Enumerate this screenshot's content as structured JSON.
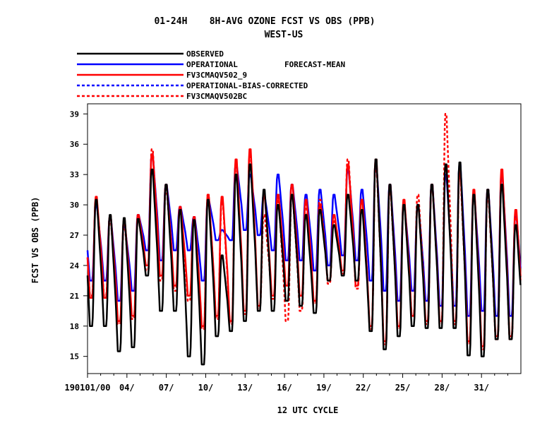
{
  "chart_data": {
    "type": "line",
    "title": "01-24H    8H-AVG OZONE FCST VS OBS (PPB)",
    "subtitle": "WEST-US",
    "legend_note": "FORECAST-MEAN",
    "xlabel": "12 UTC CYCLE",
    "ylabel": "FCST VS OBS (PPB)",
    "ylim": [
      13.3,
      40
    ],
    "xlim": [
      0,
      33
    ],
    "yticks": [
      "15",
      "18",
      "21",
      "24",
      "27",
      "30",
      "33",
      "36",
      "39"
    ],
    "xticks": [
      "190101/00",
      "04/",
      "07/",
      "10/",
      "13/",
      "16/",
      "19/",
      "22/",
      "25/",
      "28/",
      "31/"
    ],
    "legend_position": "top-left",
    "series": [
      {
        "name": "OBSERVED",
        "color": "#000000",
        "dash": "solid",
        "peaks": [
          30.5,
          29.0,
          28.7,
          28.6,
          33.5,
          32.0,
          29.5,
          28.5,
          30.5,
          25.0,
          33.0,
          34.0,
          31.5,
          30.0,
          31.0,
          29.0,
          29.5,
          28.0,
          31.0,
          29.5,
          34.5,
          32.0,
          30.0,
          30.0,
          32.0,
          34.0,
          34.2,
          31.0,
          31.5,
          32.0,
          28.0
        ],
        "troughs": [
          18.0,
          15.5,
          15.9,
          23.0,
          19.5,
          19.5,
          15.0,
          14.2,
          17.0,
          17.5,
          18.5,
          19.5,
          19.5,
          20.5,
          20.0,
          19.3,
          22.5,
          23.0,
          22.5,
          17.5,
          15.7,
          17.0,
          18.0,
          17.8,
          17.8,
          17.8,
          15.1,
          15.0,
          16.7
        ]
      },
      {
        "name": "OPERATIONAL",
        "color": "#0000ff",
        "dash": "solid",
        "peaks": [
          30.0,
          28.8,
          28.0,
          29.0,
          35.0,
          32.0,
          29.8,
          28.8,
          30.6,
          27.5,
          34.0,
          33.0,
          31.0,
          33.0,
          32.0,
          31.0,
          31.5,
          31.0,
          33.5,
          31.5,
          34.0,
          32.0,
          30.0,
          30.0,
          32.0,
          33.0,
          34.0,
          31.0,
          31.5,
          33.0,
          29.0
        ],
        "troughs": [
          22.5,
          20.5,
          21.5,
          25.5,
          24.5,
          25.5,
          25.5,
          22.5,
          26.5,
          26.5,
          27.5,
          27.0,
          25.5,
          24.5,
          24.5,
          23.5,
          24.0,
          25.0,
          24.5,
          22.5,
          21.5,
          20.5,
          21.5,
          20.5,
          20.0,
          20.0,
          19.0,
          19.5,
          19.0
        ]
      },
      {
        "name": "FV3CMAQV502_9",
        "color": "#ff0000",
        "dash": "solid",
        "peaks": [
          30.8,
          28.9,
          28.5,
          29.0,
          35.0,
          32.0,
          29.8,
          28.8,
          31.0,
          30.8,
          34.5,
          35.5,
          31.0,
          31.0,
          32.0,
          30.5,
          30.0,
          29.0,
          34.0,
          30.5,
          34.5,
          32.0,
          30.5,
          30.0,
          32.0,
          34.0,
          33.5,
          31.5,
          31.5,
          33.5,
          29.5
        ],
        "troughs": [
          20.8,
          18.5,
          19.0,
          24.0,
          23.0,
          22.0,
          21.0,
          18.0,
          19.0,
          18.5,
          19.5,
          20.0,
          21.0,
          22.0,
          21.0,
          20.5,
          22.5,
          23.5,
          22.0,
          18.0,
          16.5,
          18.0,
          19.0,
          18.5,
          18.5,
          18.5,
          16.5,
          16.0,
          17.0
        ]
      },
      {
        "name": "OPERATIONAL-BIAS-CORRECTED",
        "color": "#0000ff",
        "dash": "dashed",
        "peaks": [],
        "troughs": []
      },
      {
        "name": "FV3CMAQV502BC",
        "color": "#ff0000",
        "dash": "dashed",
        "peaks": [
          30.5,
          28.5,
          28.0,
          28.5,
          35.5,
          31.5,
          29.5,
          28.5,
          31.0,
          30.5,
          34.0,
          35.0,
          29.0,
          30.5,
          31.0,
          30.0,
          30.5,
          28.5,
          34.5,
          30.5,
          34.0,
          31.5,
          30.0,
          31.0,
          32.0,
          39.0,
          33.0,
          31.0,
          31.0,
          33.0,
          29.0
        ],
        "troughs": [
          21.0,
          18.2,
          18.7,
          23.5,
          22.5,
          21.5,
          20.5,
          17.7,
          18.7,
          18.2,
          19.2,
          19.7,
          20.7,
          18.5,
          19.5,
          20.2,
          22.2,
          23.2,
          21.7,
          17.7,
          16.2,
          17.7,
          19.0,
          18.2,
          18.2,
          18.2,
          16.2,
          15.7,
          16.7
        ]
      }
    ]
  }
}
